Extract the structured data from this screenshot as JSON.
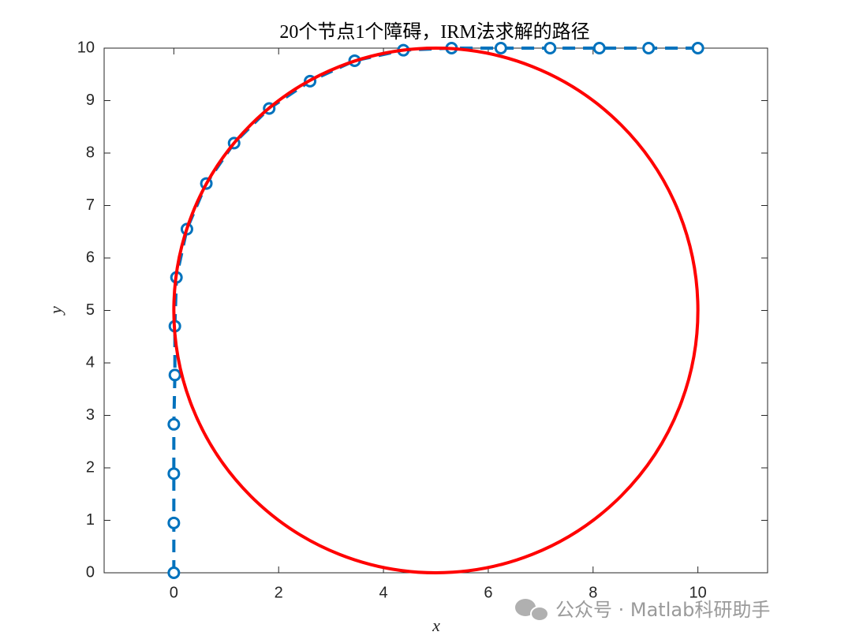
{
  "chart_data": {
    "type": "line",
    "title": "20个节点1个障碍，IRM法求解的路径",
    "xlabel": "x",
    "ylabel": "y",
    "xlim": [
      -1.33,
      11.33
    ],
    "ylim": [
      0,
      10
    ],
    "xticks": [
      0,
      2,
      4,
      6,
      8,
      10
    ],
    "yticks": [
      0,
      1,
      2,
      3,
      4,
      5,
      6,
      7,
      8,
      9,
      10
    ],
    "series": [
      {
        "color": "#0072bd",
        "x": [
          0,
          0,
          0,
          0,
          0.02,
          0.02,
          0.05,
          0.25,
          0.62,
          1.15,
          1.82,
          2.6,
          3.45,
          4.38,
          5.3,
          6.24,
          7.18,
          8.12,
          9.06,
          10
        ],
        "y": [
          0,
          0.95,
          1.89,
          2.83,
          3.77,
          4.7,
          5.63,
          6.55,
          7.42,
          8.19,
          8.85,
          9.37,
          9.76,
          9.96,
          10,
          10,
          10,
          10,
          10,
          10
        ]
      }
    ],
    "circle": {
      "center": [
        5,
        5
      ],
      "radius": 5,
      "color": "#ff0000"
    },
    "watermark": "公众号 · Matlab科研助手"
  }
}
